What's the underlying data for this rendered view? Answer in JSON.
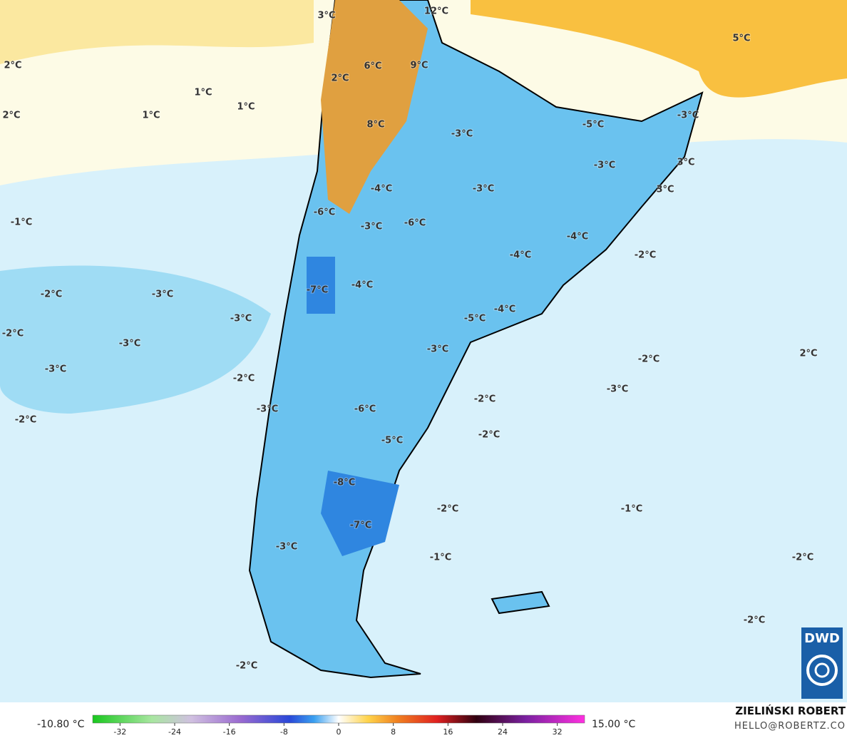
{
  "map": {
    "labels": [
      "3°C",
      "12°C",
      "5°C",
      "2°C",
      "6°C",
      "9°C",
      "1°C",
      "2°C",
      "1°C",
      "1°C",
      "2°C",
      "-3°C",
      "-5°C",
      "8°C",
      "-3°C",
      "-3°C",
      "3°C",
      "3°C",
      "-4°C",
      "-3°C",
      "-6°C",
      "-6°C",
      "-3°C",
      "-1°C",
      "-4°C",
      "-2°C",
      "-4°C",
      "-7°C",
      "-4°C",
      "-2°C",
      "-3°C",
      "-4°C",
      "-5°C",
      "-3°C",
      "-2°C",
      "-3°C",
      "-3°C",
      "2°C",
      "-2°C",
      "-3°C",
      "-2°C",
      "-3°C",
      "-2°C",
      "-3°C",
      "-6°C",
      "-2°C",
      "-2°C",
      "-5°C",
      "-8°C",
      "-2°C",
      "-1°C",
      "-7°C",
      "-3°C",
      "-1°C",
      "-2°C",
      "-2°C",
      "-2°C"
    ]
  },
  "colorbar": {
    "min_label": "-10.80 °C",
    "max_label": "15.00 °C",
    "ticks": [
      -32,
      -24,
      -16,
      -8,
      0,
      8,
      16,
      24,
      32
    ]
  },
  "credit": {
    "name": "ZIELIŃSKI ROBERT",
    "email": "HELLO@ROBERTZ.CO",
    "logo": "DWD"
  }
}
